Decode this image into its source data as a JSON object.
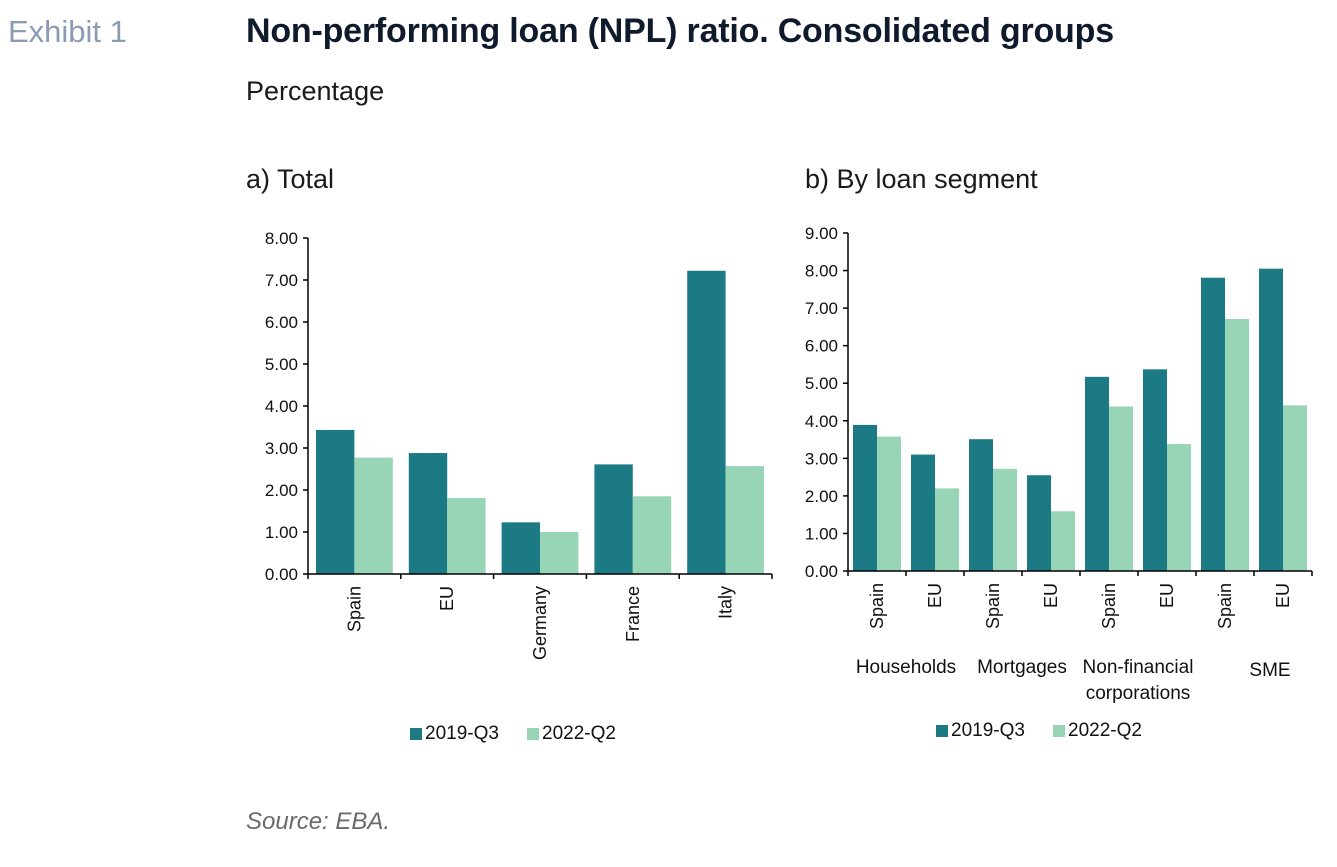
{
  "header": {
    "exhibit": "Exhibit 1",
    "title": "Non-performing loan (NPL) ratio. Consolidated groups",
    "subtitle": "Percentage"
  },
  "colors": {
    "series_2019": "#1b7a84",
    "series_2022": "#98d4b6",
    "axis": "#000000"
  },
  "footer": {
    "source": "Source: EBA."
  },
  "chart_data": [
    {
      "type": "bar",
      "title": "a) Total",
      "categories": [
        "Spain",
        "EU",
        "Germany",
        "France",
        "Italy"
      ],
      "series": [
        {
          "name": "2019-Q3",
          "values": [
            3.43,
            2.88,
            1.23,
            2.61,
            7.22
          ]
        },
        {
          "name": "2022-Q2",
          "values": [
            2.77,
            1.81,
            1.0,
            1.85,
            2.57
          ]
        }
      ],
      "yticks": [
        "0.00",
        "1.00",
        "2.00",
        "3.00",
        "4.00",
        "5.00",
        "6.00",
        "7.00",
        "8.00"
      ],
      "ylim": [
        0,
        8
      ],
      "legend": "bottom"
    },
    {
      "type": "bar",
      "title": "b) By loan segment",
      "categories": [
        "Spain",
        "EU",
        "Spain",
        "EU",
        "Spain",
        "EU",
        "Spain",
        "EU"
      ],
      "groups": [
        {
          "label": "Households",
          "label_lines": [
            "Households"
          ]
        },
        {
          "label": "Mortgages",
          "label_lines": [
            "Mortgages"
          ]
        },
        {
          "label": "Non-financial corporations",
          "label_lines": [
            "Non-financial",
            "corporations"
          ]
        },
        {
          "label": "SME",
          "label_lines": [
            "SME"
          ]
        }
      ],
      "series": [
        {
          "name": "2019-Q3",
          "values": [
            3.89,
            3.1,
            3.51,
            2.55,
            5.17,
            5.37,
            7.81,
            8.05
          ]
        },
        {
          "name": "2022-Q2",
          "values": [
            3.58,
            2.2,
            2.72,
            1.59,
            4.38,
            3.38,
            6.71,
            4.41
          ]
        }
      ],
      "yticks": [
        "0.00",
        "1.00",
        "2.00",
        "3.00",
        "4.00",
        "5.00",
        "6.00",
        "7.00",
        "8.00",
        "9.00"
      ],
      "ylim": [
        0,
        9
      ],
      "legend": "bottom"
    }
  ]
}
